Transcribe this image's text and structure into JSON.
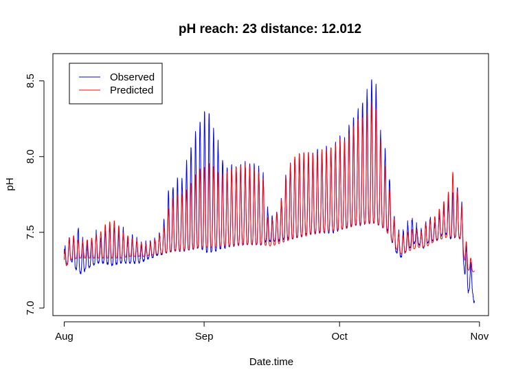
{
  "chart_data": {
    "type": "line",
    "title": "pH  reach: 23  distance: 12.012",
    "xlabel": "Date.time",
    "ylabel": "pH",
    "x_ticks": [
      {
        "label": "Aug",
        "day": 0
      },
      {
        "label": "Sep",
        "day": 31
      },
      {
        "label": "Oct",
        "day": 61
      },
      {
        "label": "Nov",
        "day": 92
      }
    ],
    "y_ticks": [
      "7.0",
      "7.5",
      "8.0",
      "8.5"
    ],
    "xlim_days": [
      -2.5,
      94
    ],
    "ylim": [
      6.95,
      8.68
    ],
    "legend_position": "top-left",
    "grid": false,
    "series": [
      {
        "name": "Observed",
        "color": "#0000ff",
        "envelope": [
          [
            0.0,
            7.32,
            7.36
          ],
          [
            0.3,
            7.3,
            7.46
          ],
          [
            1.0,
            7.28,
            7.44
          ],
          [
            1.5,
            7.32,
            7.52
          ],
          [
            2.0,
            7.27,
            7.46
          ],
          [
            3.0,
            7.25,
            7.55
          ],
          [
            4.0,
            7.22,
            7.45
          ],
          [
            5.0,
            7.27,
            7.43
          ],
          [
            6.0,
            7.27,
            7.44
          ],
          [
            7.0,
            7.3,
            7.5
          ],
          [
            8.0,
            7.3,
            7.45
          ],
          [
            9.0,
            7.3,
            7.5
          ],
          [
            10.0,
            7.29,
            7.53
          ],
          [
            11.0,
            7.28,
            7.54
          ],
          [
            12.0,
            7.3,
            7.5
          ],
          [
            13.0,
            7.3,
            7.52
          ],
          [
            14.0,
            7.3,
            7.45
          ],
          [
            15.0,
            7.3,
            7.47
          ],
          [
            16.0,
            7.3,
            7.45
          ],
          [
            17.0,
            7.3,
            7.42
          ],
          [
            18.0,
            7.32,
            7.42
          ],
          [
            19.0,
            7.33,
            7.44
          ],
          [
            20.0,
            7.34,
            7.45
          ],
          [
            21.0,
            7.35,
            7.48
          ],
          [
            22.0,
            7.36,
            7.55
          ],
          [
            23.0,
            7.37,
            7.75
          ],
          [
            24.0,
            7.38,
            7.8
          ],
          [
            25.0,
            7.38,
            7.84
          ],
          [
            26.0,
            7.38,
            7.85
          ],
          [
            27.0,
            7.38,
            7.95
          ],
          [
            28.0,
            7.39,
            8.05
          ],
          [
            29.0,
            7.39,
            8.15
          ],
          [
            30.0,
            7.4,
            8.25
          ],
          [
            31.0,
            7.38,
            8.28
          ],
          [
            32.0,
            7.36,
            8.29
          ],
          [
            33.0,
            7.38,
            8.2
          ],
          [
            34.0,
            7.38,
            8.1
          ],
          [
            35.0,
            7.4,
            8.0
          ],
          [
            36.0,
            7.4,
            7.92
          ],
          [
            37.0,
            7.41,
            7.94
          ],
          [
            38.0,
            7.41,
            7.94
          ],
          [
            39.0,
            7.42,
            7.94
          ],
          [
            40.0,
            7.42,
            7.95
          ],
          [
            41.0,
            7.42,
            7.95
          ],
          [
            42.0,
            7.42,
            7.94
          ],
          [
            43.0,
            7.42,
            7.92
          ],
          [
            44.0,
            7.42,
            7.9
          ],
          [
            45.0,
            7.45,
            7.65
          ],
          [
            46.0,
            7.44,
            7.6
          ],
          [
            47.0,
            7.44,
            7.65
          ],
          [
            48.0,
            7.45,
            7.7
          ],
          [
            49.0,
            7.46,
            7.85
          ],
          [
            50.0,
            7.46,
            7.95
          ],
          [
            51.0,
            7.46,
            8.0
          ],
          [
            52.0,
            7.47,
            8.0
          ],
          [
            53.0,
            7.48,
            8.01
          ],
          [
            54.0,
            7.49,
            8.02
          ],
          [
            55.0,
            7.49,
            8.02
          ],
          [
            56.0,
            7.5,
            8.03
          ],
          [
            57.0,
            7.5,
            8.05
          ],
          [
            58.0,
            7.5,
            8.05
          ],
          [
            59.0,
            7.5,
            8.05
          ],
          [
            60.0,
            7.5,
            8.08
          ],
          [
            61.0,
            7.52,
            8.12
          ],
          [
            62.0,
            7.52,
            8.1
          ],
          [
            63.0,
            7.54,
            8.2
          ],
          [
            64.0,
            7.55,
            8.25
          ],
          [
            65.0,
            7.55,
            8.3
          ],
          [
            66.0,
            7.55,
            8.35
          ],
          [
            67.0,
            7.56,
            8.42
          ],
          [
            68.0,
            7.56,
            8.5
          ],
          [
            68.8,
            7.56,
            8.61
          ],
          [
            69.5,
            7.55,
            8.25
          ],
          [
            70.3,
            7.54,
            8.12
          ],
          [
            71.0,
            7.53,
            8.05
          ],
          [
            72.0,
            7.5,
            7.9
          ],
          [
            73.0,
            7.4,
            7.6
          ],
          [
            74.0,
            7.35,
            7.5
          ],
          [
            75.0,
            7.33,
            7.5
          ],
          [
            76.0,
            7.4,
            7.55
          ],
          [
            77.0,
            7.4,
            7.6
          ],
          [
            78.0,
            7.45,
            7.55
          ],
          [
            79.0,
            7.4,
            7.5
          ],
          [
            80.0,
            7.4,
            7.55
          ],
          [
            81.0,
            7.45,
            7.6
          ],
          [
            82.0,
            7.45,
            7.55
          ],
          [
            83.0,
            7.45,
            7.62
          ],
          [
            84.0,
            7.5,
            7.65
          ],
          [
            85.0,
            7.48,
            7.7
          ],
          [
            86.0,
            7.45,
            7.75
          ],
          [
            87.0,
            7.48,
            7.8
          ],
          [
            88.0,
            7.45,
            7.7
          ],
          [
            88.8,
            7.2,
            7.5
          ],
          [
            89.5,
            7.1,
            7.3
          ],
          [
            90.0,
            7.15,
            7.3
          ],
          [
            90.5,
            7.1,
            7.25
          ],
          [
            90.9,
            7.0,
            7.1
          ]
        ]
      },
      {
        "name": "Predicted",
        "color": "#ff0000",
        "envelope": [
          [
            0.0,
            7.27,
            7.33
          ],
          [
            0.3,
            7.27,
            7.44
          ],
          [
            1.0,
            7.3,
            7.45
          ],
          [
            1.5,
            7.32,
            7.5
          ],
          [
            2.0,
            7.32,
            7.48
          ],
          [
            3.0,
            7.33,
            7.45
          ],
          [
            4.0,
            7.33,
            7.44
          ],
          [
            5.0,
            7.33,
            7.45
          ],
          [
            6.0,
            7.33,
            7.46
          ],
          [
            7.0,
            7.33,
            7.48
          ],
          [
            8.0,
            7.33,
            7.5
          ],
          [
            9.0,
            7.33,
            7.55
          ],
          [
            10.0,
            7.33,
            7.57
          ],
          [
            11.0,
            7.33,
            7.58
          ],
          [
            12.0,
            7.33,
            7.55
          ],
          [
            13.0,
            7.33,
            7.5
          ],
          [
            14.0,
            7.34,
            7.48
          ],
          [
            15.0,
            7.34,
            7.46
          ],
          [
            16.0,
            7.34,
            7.45
          ],
          [
            17.0,
            7.34,
            7.43
          ],
          [
            18.0,
            7.34,
            7.42
          ],
          [
            19.0,
            7.35,
            7.43
          ],
          [
            20.0,
            7.35,
            7.45
          ],
          [
            21.0,
            7.36,
            7.48
          ],
          [
            22.0,
            7.36,
            7.52
          ],
          [
            23.0,
            7.37,
            7.65
          ],
          [
            24.0,
            7.37,
            7.72
          ],
          [
            25.0,
            7.38,
            7.75
          ],
          [
            26.0,
            7.38,
            7.75
          ],
          [
            27.0,
            7.38,
            7.78
          ],
          [
            28.0,
            7.39,
            7.82
          ],
          [
            29.0,
            7.39,
            7.88
          ],
          [
            30.0,
            7.4,
            7.92
          ],
          [
            31.0,
            7.4,
            7.93
          ],
          [
            32.0,
            7.4,
            7.96
          ],
          [
            33.0,
            7.4,
            7.94
          ],
          [
            34.0,
            7.4,
            7.9
          ],
          [
            35.0,
            7.41,
            7.88
          ],
          [
            36.0,
            7.41,
            7.9
          ],
          [
            37.0,
            7.41,
            7.92
          ],
          [
            38.0,
            7.41,
            7.93
          ],
          [
            39.0,
            7.42,
            7.94
          ],
          [
            40.0,
            7.42,
            7.95
          ],
          [
            41.0,
            7.42,
            7.94
          ],
          [
            42.0,
            7.42,
            7.92
          ],
          [
            43.0,
            7.42,
            7.9
          ],
          [
            44.0,
            7.42,
            7.88
          ],
          [
            45.0,
            7.41,
            7.6
          ],
          [
            46.0,
            7.41,
            7.58
          ],
          [
            47.0,
            7.42,
            7.62
          ],
          [
            48.0,
            7.43,
            7.7
          ],
          [
            49.0,
            7.44,
            7.85
          ],
          [
            50.0,
            7.45,
            7.95
          ],
          [
            51.0,
            7.46,
            8.0
          ],
          [
            52.0,
            7.47,
            8.02
          ],
          [
            53.0,
            7.47,
            8.03
          ],
          [
            54.0,
            7.48,
            8.03
          ],
          [
            55.0,
            7.49,
            8.02
          ],
          [
            56.0,
            7.49,
            8.02
          ],
          [
            57.0,
            7.5,
            8.05
          ],
          [
            58.0,
            7.5,
            8.05
          ],
          [
            59.0,
            7.51,
            8.06
          ],
          [
            60.0,
            7.51,
            8.08
          ],
          [
            61.0,
            7.52,
            8.12
          ],
          [
            62.0,
            7.52,
            8.1
          ],
          [
            63.0,
            7.53,
            8.15
          ],
          [
            64.0,
            7.54,
            8.2
          ],
          [
            65.0,
            7.55,
            8.25
          ],
          [
            66.0,
            7.55,
            8.26
          ],
          [
            67.0,
            7.56,
            8.28
          ],
          [
            68.0,
            7.56,
            8.35
          ],
          [
            68.8,
            7.56,
            8.4
          ],
          [
            69.5,
            7.55,
            8.2
          ],
          [
            70.3,
            7.54,
            8.08
          ],
          [
            71.0,
            7.52,
            7.95
          ],
          [
            72.0,
            7.48,
            7.8
          ],
          [
            73.0,
            7.42,
            7.6
          ],
          [
            74.0,
            7.37,
            7.5
          ],
          [
            75.0,
            7.35,
            7.48
          ],
          [
            76.0,
            7.38,
            7.5
          ],
          [
            77.0,
            7.38,
            7.52
          ],
          [
            78.0,
            7.4,
            7.52
          ],
          [
            79.0,
            7.4,
            7.5
          ],
          [
            80.0,
            7.4,
            7.55
          ],
          [
            81.0,
            7.42,
            7.58
          ],
          [
            82.0,
            7.44,
            7.6
          ],
          [
            83.0,
            7.45,
            7.65
          ],
          [
            84.0,
            7.46,
            7.7
          ],
          [
            85.0,
            7.47,
            7.75
          ],
          [
            86.0,
            7.47,
            7.91
          ],
          [
            87.0,
            7.47,
            7.78
          ],
          [
            88.0,
            7.45,
            7.7
          ],
          [
            88.8,
            7.3,
            7.5
          ],
          [
            89.5,
            7.25,
            7.35
          ],
          [
            90.0,
            7.25,
            7.34
          ],
          [
            90.5,
            7.24,
            7.28
          ],
          [
            90.9,
            7.24,
            7.26
          ]
        ]
      }
    ]
  }
}
